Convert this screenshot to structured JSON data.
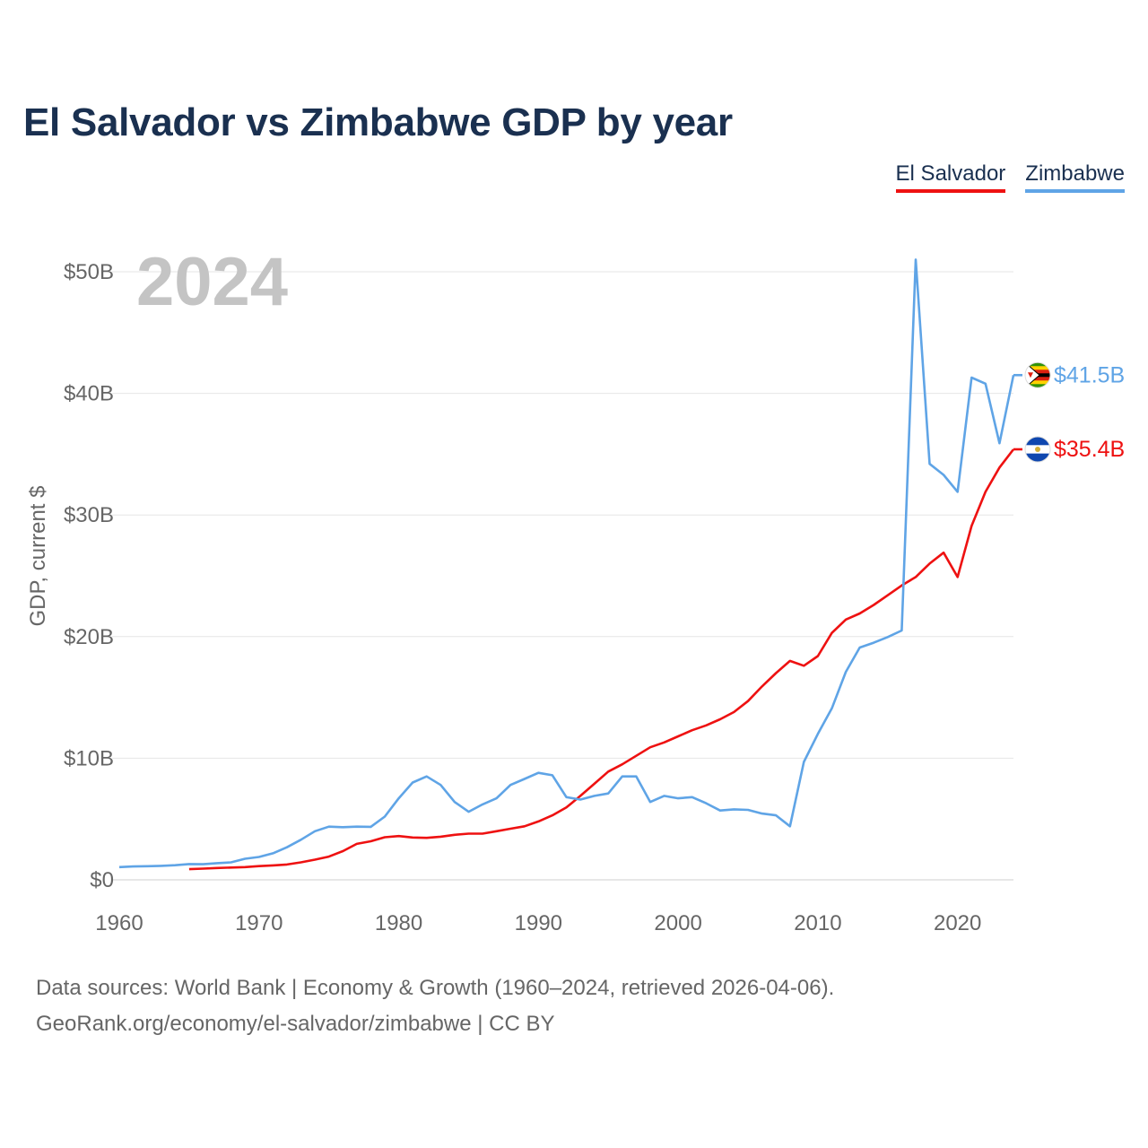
{
  "title": "El Salvador vs Zimbabwe GDP by year",
  "legend": [
    {
      "label": "El Salvador",
      "color": "#ee1111"
    },
    {
      "label": "Zimbabwe",
      "color": "#5fa4e6"
    }
  ],
  "chart_data": {
    "type": "line",
    "title": "El Salvador vs Zimbabwe GDP by year",
    "xlabel": "",
    "ylabel": "GDP, current $",
    "year_label": "2024",
    "xlim": [
      1960,
      2024
    ],
    "ylim": [
      0,
      50
    ],
    "unit": "billions of current US$",
    "x_ticks": [
      1960,
      1970,
      1980,
      1990,
      2000,
      2010,
      2020
    ],
    "y_ticks": [
      {
        "value": 0,
        "label": "$0"
      },
      {
        "value": 10,
        "label": "$10B"
      },
      {
        "value": 20,
        "label": "$20B"
      },
      {
        "value": 30,
        "label": "$30B"
      },
      {
        "value": 40,
        "label": "$40B"
      },
      {
        "value": 50,
        "label": "$50B"
      }
    ],
    "grid": true,
    "series": [
      {
        "name": "El Salvador",
        "color": "#ee1111",
        "end_label": "$35.4B",
        "x": [
          1965,
          1966,
          1967,
          1968,
          1969,
          1970,
          1971,
          1972,
          1973,
          1974,
          1975,
          1976,
          1977,
          1978,
          1979,
          1980,
          1981,
          1982,
          1983,
          1984,
          1985,
          1986,
          1987,
          1988,
          1989,
          1990,
          1991,
          1992,
          1993,
          1994,
          1995,
          1996,
          1997,
          1998,
          1999,
          2000,
          2001,
          2002,
          2003,
          2004,
          2005,
          2006,
          2007,
          2008,
          2009,
          2010,
          2011,
          2012,
          2013,
          2014,
          2015,
          2016,
          2017,
          2018,
          2019,
          2020,
          2021,
          2022,
          2023,
          2024
        ],
        "values": [
          0.88,
          0.92,
          0.97,
          1.01,
          1.05,
          1.13,
          1.19,
          1.26,
          1.44,
          1.66,
          1.91,
          2.36,
          2.96,
          3.17,
          3.5,
          3.6,
          3.48,
          3.45,
          3.55,
          3.7,
          3.8,
          3.8,
          4.0,
          4.2,
          4.4,
          4.8,
          5.3,
          5.95,
          6.9,
          7.9,
          8.9,
          9.5,
          10.2,
          10.9,
          11.3,
          11.8,
          12.3,
          12.7,
          13.2,
          13.8,
          14.7,
          15.9,
          17.0,
          18.0,
          17.6,
          18.4,
          20.3,
          21.4,
          21.9,
          22.6,
          23.4,
          24.2,
          24.9,
          26.0,
          26.9,
          24.9,
          29.1,
          31.9,
          33.9,
          35.4
        ]
      },
      {
        "name": "Zimbabwe",
        "color": "#5fa4e6",
        "end_label": "$41.5B",
        "x": [
          1960,
          1961,
          1962,
          1963,
          1964,
          1965,
          1966,
          1967,
          1968,
          1969,
          1970,
          1971,
          1972,
          1973,
          1974,
          1975,
          1976,
          1977,
          1978,
          1979,
          1980,
          1981,
          1982,
          1983,
          1984,
          1985,
          1986,
          1987,
          1988,
          1989,
          1990,
          1991,
          1992,
          1993,
          1994,
          1995,
          1996,
          1997,
          1998,
          1999,
          2000,
          2001,
          2002,
          2003,
          2004,
          2005,
          2006,
          2007,
          2008,
          2009,
          2010,
          2011,
          2012,
          2013,
          2014,
          2015,
          2016,
          2017,
          2018,
          2019,
          2020,
          2021,
          2022,
          2023,
          2024
        ],
        "values": [
          1.05,
          1.1,
          1.12,
          1.15,
          1.2,
          1.3,
          1.28,
          1.37,
          1.44,
          1.73,
          1.88,
          2.18,
          2.68,
          3.3,
          4.0,
          4.37,
          4.33,
          4.37,
          4.36,
          5.2,
          6.7,
          8.0,
          8.5,
          7.8,
          6.4,
          5.6,
          6.2,
          6.7,
          7.8,
          8.3,
          8.8,
          8.6,
          6.8,
          6.6,
          6.9,
          7.1,
          8.5,
          8.5,
          6.4,
          6.9,
          6.7,
          6.8,
          6.3,
          5.7,
          5.8,
          5.75,
          5.45,
          5.3,
          4.4,
          9.7,
          12.0,
          14.1,
          17.1,
          19.1,
          19.5,
          19.96,
          20.5,
          51.0,
          34.2,
          33.3,
          31.9,
          41.3,
          40.8,
          35.9,
          41.5
        ]
      }
    ]
  },
  "source": {
    "line1": "Data sources: World Bank | Economy & Growth (1960–2024, retrieved 2026-04-06).",
    "line2": "GeoRank.org/economy/el-salvador/zimbabwe | CC BY"
  }
}
